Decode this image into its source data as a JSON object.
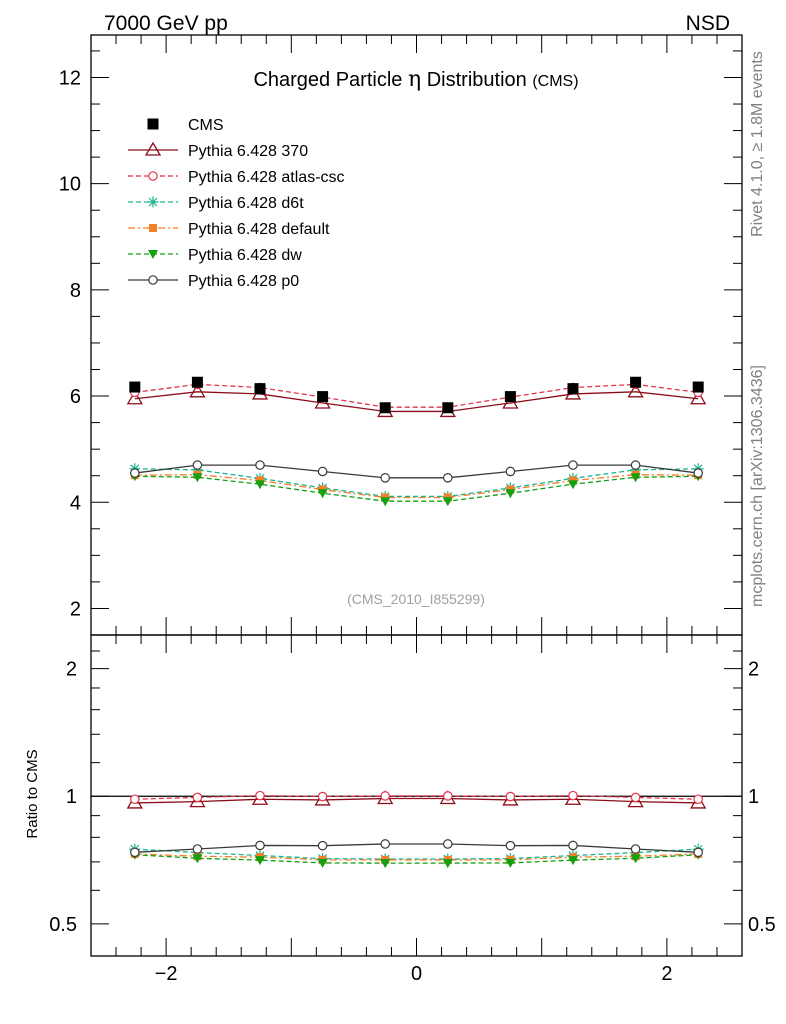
{
  "header": {
    "left_label": "7000 GeV pp",
    "right_label": "NSD",
    "side_label_top": "Rivet 4.1.0, ≥ 1.8M events",
    "side_label_bottom": "mcplots.cern.ch [arXiv:1306.3436]"
  },
  "chart_data": {
    "type": "line",
    "title_main": "Charged Particle",
    "title_symbol": "η",
    "title_tail": "Distribution",
    "title_suffix": "(CMS)",
    "watermark": "(CMS_2010_I855299)",
    "xlim": [
      -2.6,
      2.6
    ],
    "x": [
      -2.25,
      -1.75,
      -1.25,
      -0.75,
      -0.25,
      0.25,
      0.75,
      1.25,
      1.75,
      2.25
    ],
    "xticks": [
      -2,
      0,
      2
    ],
    "xtick_labels": [
      "−2",
      "0",
      "2"
    ],
    "main": {
      "ylim": [
        1.5,
        12.8
      ],
      "yticks": [
        2,
        4,
        6,
        8,
        10,
        12
      ],
      "ytick_labels": [
        "2",
        "4",
        "6",
        "8",
        "10",
        "12"
      ]
    },
    "ratio": {
      "ylabel": "Ratio to CMS",
      "ylim": [
        0.42,
        2.4
      ],
      "log": true,
      "yticks": [
        0.5,
        1,
        2
      ],
      "ytick_labels": [
        "0.5",
        "1",
        "2"
      ]
    },
    "data_series": {
      "name": "CMS",
      "color": "#000000",
      "values": [
        6.17,
        6.26,
        6.14,
        5.99,
        5.78,
        5.78,
        5.99,
        6.14,
        6.26,
        6.17
      ]
    },
    "series": [
      {
        "name": "Pythia 6.428 370",
        "color": "#8b0d1a",
        "marker": "triangle-open",
        "dash": "solid",
        "values": [
          5.95,
          6.08,
          6.04,
          5.87,
          5.71,
          5.71,
          5.87,
          6.04,
          6.08,
          5.95
        ]
      },
      {
        "name": "Pythia 6.428 atlas-csc",
        "color": "#e8334a",
        "marker": "circle-open",
        "dash": "dashed",
        "values": [
          6.07,
          6.22,
          6.16,
          5.98,
          5.79,
          5.79,
          5.98,
          6.16,
          6.22,
          6.07
        ]
      },
      {
        "name": "Pythia 6.428 d6t",
        "color": "#1ab58f",
        "marker": "star",
        "dash": "dashed",
        "values": [
          4.63,
          4.61,
          4.45,
          4.27,
          4.11,
          4.11,
          4.27,
          4.45,
          4.61,
          4.63
        ]
      },
      {
        "name": "Pythia 6.428 default",
        "color": "#f47f2a",
        "marker": "square",
        "dash": "dashdot",
        "values": [
          4.51,
          4.52,
          4.41,
          4.24,
          4.09,
          4.09,
          4.24,
          4.41,
          4.52,
          4.51
        ]
      },
      {
        "name": "Pythia 6.428 dw",
        "color": "#10a010",
        "marker": "triangle-down",
        "dash": "dashed",
        "values": [
          4.49,
          4.47,
          4.34,
          4.17,
          4.02,
          4.02,
          4.17,
          4.34,
          4.47,
          4.49
        ]
      },
      {
        "name": "Pythia 6.428 p0",
        "color": "#3a3a3a",
        "marker": "circle-open",
        "dash": "solid",
        "values": [
          4.55,
          4.7,
          4.7,
          4.58,
          4.46,
          4.46,
          4.58,
          4.7,
          4.7,
          4.55
        ]
      }
    ]
  }
}
